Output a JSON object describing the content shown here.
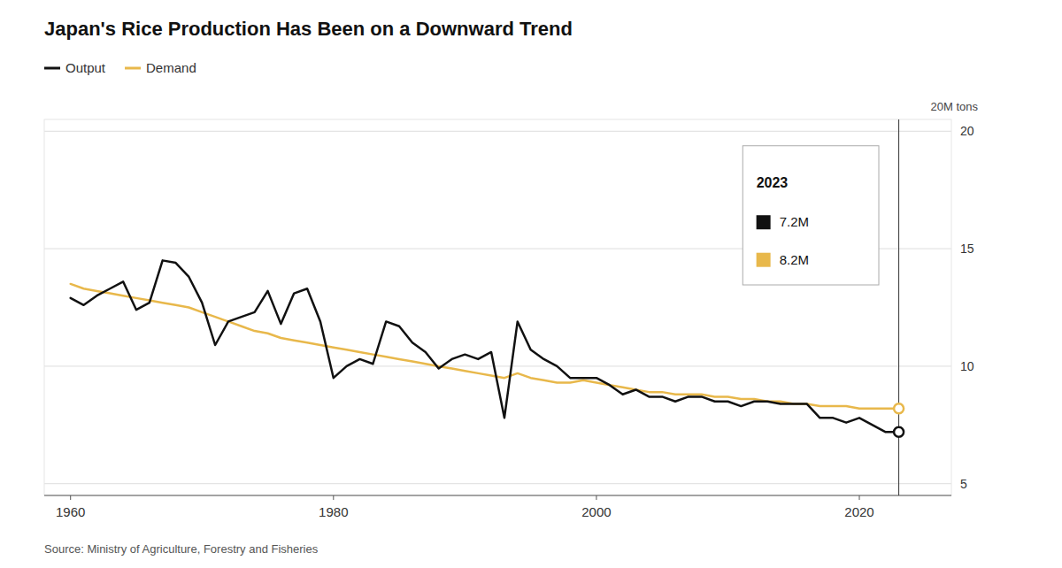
{
  "chart_data": {
    "type": "line",
    "title": "Japan's Rice Production Has Been on a Downward Trend",
    "y_label": "20M tons",
    "source": "Source: Ministry of Agriculture, Forestry and Fisheries",
    "x": [
      1960,
      1961,
      1962,
      1963,
      1964,
      1965,
      1966,
      1967,
      1968,
      1969,
      1970,
      1971,
      1972,
      1973,
      1974,
      1975,
      1976,
      1977,
      1978,
      1979,
      1980,
      1981,
      1982,
      1983,
      1984,
      1985,
      1986,
      1987,
      1988,
      1989,
      1990,
      1991,
      1992,
      1993,
      1994,
      1995,
      1996,
      1997,
      1998,
      1999,
      2000,
      2001,
      2002,
      2003,
      2004,
      2005,
      2006,
      2007,
      2008,
      2009,
      2010,
      2011,
      2012,
      2013,
      2014,
      2015,
      2016,
      2017,
      2018,
      2019,
      2020,
      2021,
      2022,
      2023
    ],
    "series": [
      {
        "name": "Output",
        "color": "#111111",
        "values": [
          12.9,
          12.6,
          13.0,
          13.3,
          13.6,
          12.4,
          12.7,
          14.5,
          14.4,
          13.8,
          12.7,
          10.9,
          11.9,
          12.1,
          12.3,
          13.2,
          11.8,
          13.1,
          13.3,
          11.9,
          9.5,
          10.0,
          10.3,
          10.1,
          11.9,
          11.7,
          11.0,
          10.6,
          9.9,
          10.3,
          10.5,
          10.3,
          10.6,
          7.8,
          11.9,
          10.7,
          10.3,
          10.0,
          9.5,
          9.5,
          9.5,
          9.2,
          8.8,
          9.0,
          8.7,
          8.7,
          8.5,
          8.7,
          8.7,
          8.5,
          8.5,
          8.3,
          8.5,
          8.5,
          8.4,
          8.4,
          8.4,
          7.8,
          7.8,
          7.6,
          7.8,
          7.5,
          7.2,
          7.2
        ]
      },
      {
        "name": "Demand",
        "color": "#E8B84B",
        "values": [
          13.5,
          13.3,
          13.2,
          13.1,
          13.0,
          12.9,
          12.8,
          12.7,
          12.6,
          12.5,
          12.3,
          12.1,
          11.9,
          11.7,
          11.5,
          11.4,
          11.2,
          11.1,
          11.0,
          10.9,
          10.8,
          10.7,
          10.6,
          10.5,
          10.4,
          10.3,
          10.2,
          10.1,
          10.0,
          9.9,
          9.8,
          9.7,
          9.6,
          9.5,
          9.7,
          9.5,
          9.4,
          9.3,
          9.3,
          9.4,
          9.3,
          9.2,
          9.1,
          9.0,
          8.9,
          8.9,
          8.8,
          8.8,
          8.8,
          8.7,
          8.7,
          8.6,
          8.6,
          8.5,
          8.5,
          8.4,
          8.4,
          8.3,
          8.3,
          8.3,
          8.2,
          8.2,
          8.2,
          8.2
        ]
      }
    ],
    "xlim": [
      1958,
      2027
    ],
    "xticks": [
      1960,
      1980,
      2000,
      2020
    ],
    "ylim": [
      4.5,
      20.5
    ],
    "yticks": [
      5,
      10,
      15,
      20
    ],
    "grid": true,
    "legend": "top-left",
    "annotations": [
      {
        "x": 2023,
        "label": "2023",
        "entries": [
          {
            "label": "7.2M",
            "value": 7.2,
            "color": "#111111"
          },
          {
            "label": "8.2M",
            "value": 8.2,
            "color": "#E8B84B"
          }
        ]
      }
    ]
  }
}
